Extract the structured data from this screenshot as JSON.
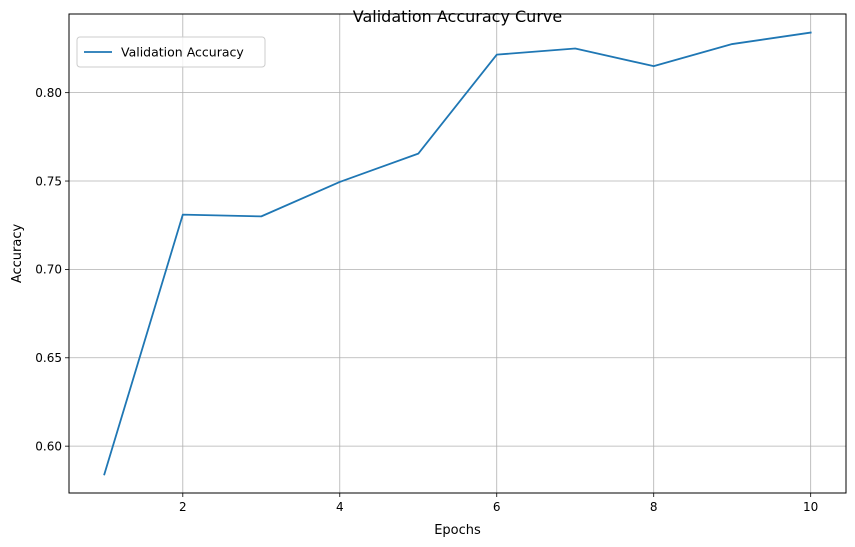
{
  "chart_data": {
    "type": "line",
    "title": "Validation Accuracy Curve",
    "xlabel": "Epochs",
    "ylabel": "Accuracy",
    "xlim": [
      0.55,
      10.45
    ],
    "ylim": [
      0.5735,
      0.8445
    ],
    "xticks": [
      2,
      4,
      6,
      8,
      10
    ],
    "yticks": [
      0.6,
      0.65,
      0.7,
      0.75,
      0.8
    ],
    "xtick_labels": [
      "2",
      "4",
      "6",
      "8",
      "10"
    ],
    "ytick_labels": [
      "0.60",
      "0.65",
      "0.70",
      "0.75",
      "0.80"
    ],
    "grid": true,
    "legend_position": "upper-left",
    "series": [
      {
        "name": "Validation Accuracy",
        "color": "#1f77b4",
        "x": [
          1,
          2,
          3,
          4,
          5,
          6,
          7,
          8,
          9,
          10
        ],
        "y": [
          0.584,
          0.731,
          0.73,
          0.7495,
          0.7655,
          0.8215,
          0.825,
          0.815,
          0.8275,
          0.834
        ]
      }
    ]
  }
}
